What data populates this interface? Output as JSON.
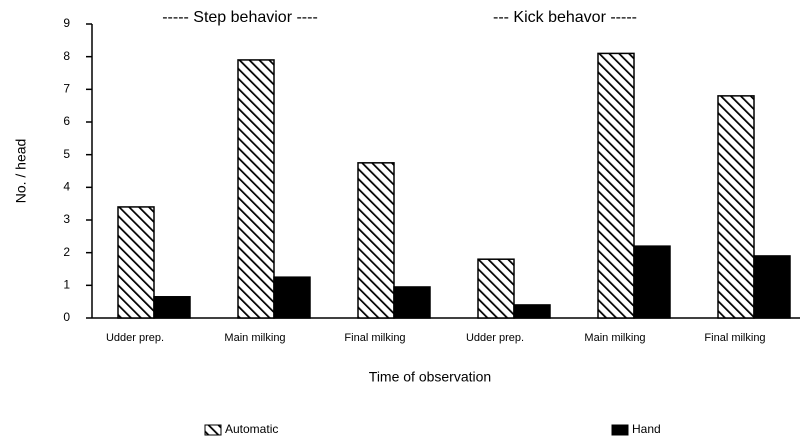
{
  "chart_data": {
    "type": "bar",
    "annotations": [
      "-----  Step behavior  ----",
      "---  Kick behavor  -----"
    ],
    "xlabel": "Time of observation",
    "ylabel": "No. / head",
    "categories": [
      "Udder prep.",
      "Main milking",
      "Final milking",
      "Udder prep.",
      "Main milking",
      "Final milking"
    ],
    "series": [
      {
        "name": "Automatic",
        "color": "#000000",
        "hatch": "\\\\",
        "values": [
          3.4,
          7.9,
          4.75,
          1.8,
          8.1,
          6.8
        ]
      },
      {
        "name": "Hand",
        "color": "#000000",
        "values": [
          0.65,
          1.25,
          0.95,
          0.4,
          2.2,
          1.9
        ]
      }
    ],
    "ylim": [
      0,
      9
    ],
    "yticks": [
      0,
      1,
      2,
      3,
      4,
      5,
      6,
      7,
      8,
      9
    ]
  }
}
